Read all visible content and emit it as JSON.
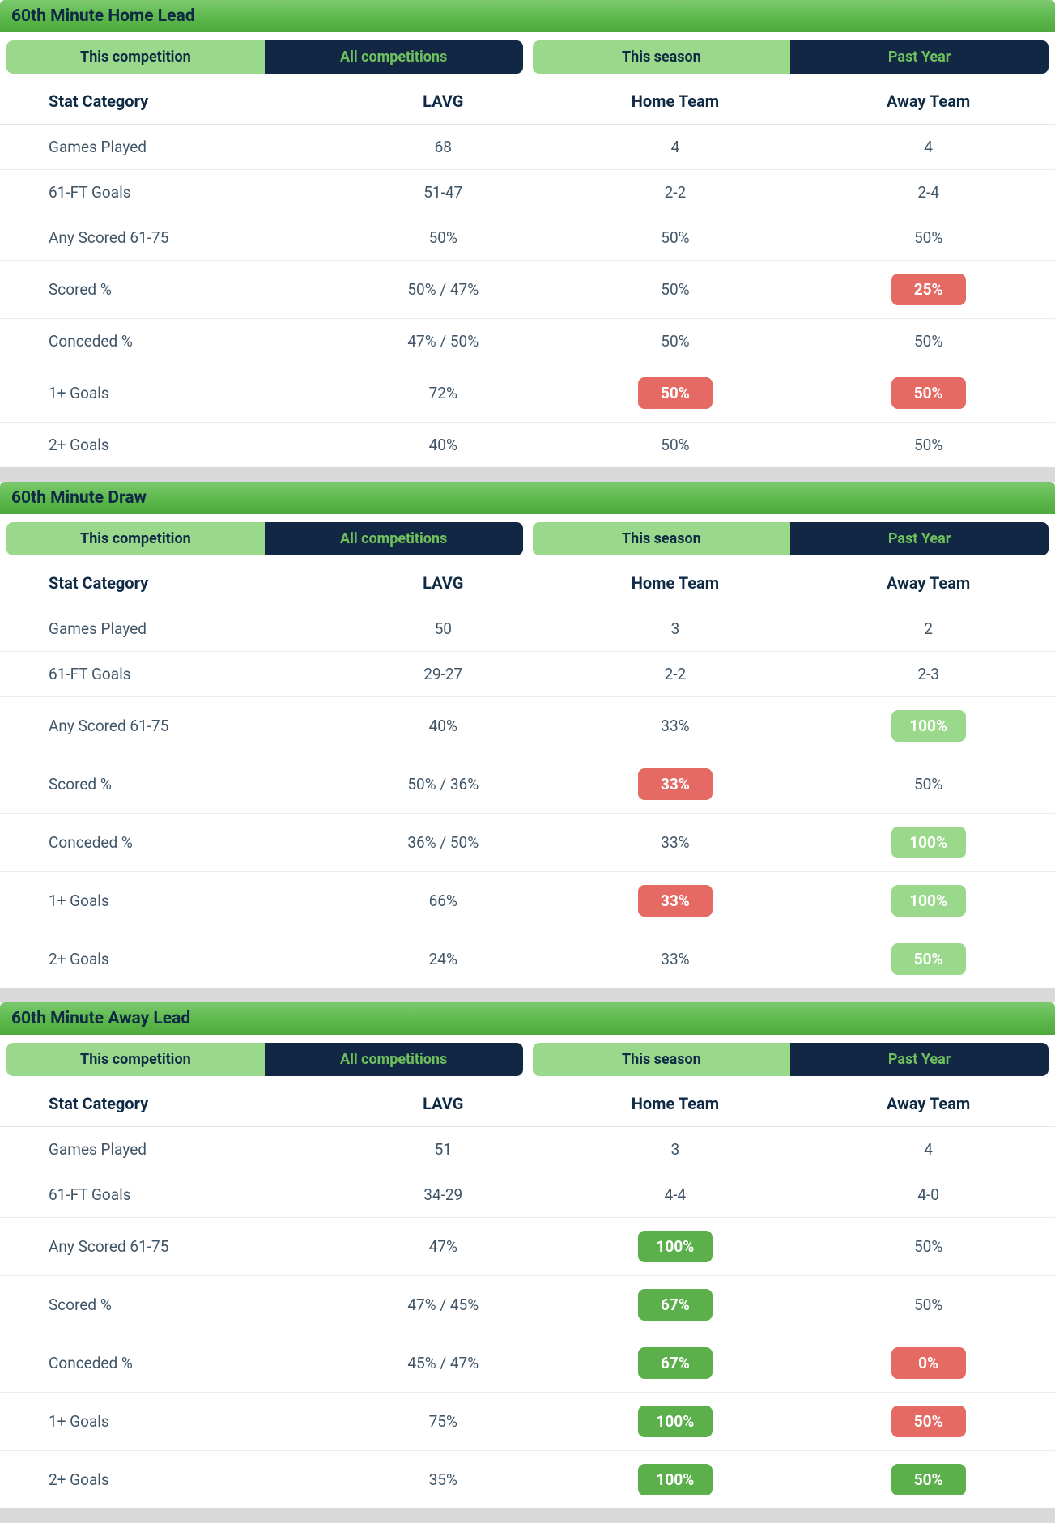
{
  "colors": {
    "header_gradient_top": "#7dc96f",
    "header_gradient_mid": "#5fba4e",
    "header_gradient_bot": "#4da93c",
    "header_text": "#0e2a44",
    "tab_active_bg": "#9ad98c",
    "tab_active_text": "#0e2a44",
    "tab_inactive_bg": "#122743",
    "tab_inactive_text": "#6fbf5e",
    "badge_red": "#e56a63",
    "badge_green_light": "#9ad98c",
    "badge_green_dark": "#5bb04c",
    "row_text": "#405568",
    "border": "#ececec",
    "page_bg": "#d9d9d9"
  },
  "tab_labels": {
    "this_competition": "This competition",
    "all_competitions": "All competitions",
    "this_season": "This season",
    "past_year": "Past Year"
  },
  "columns": {
    "cat": "Stat Category",
    "lavg": "LAVG",
    "home": "Home Team",
    "away": "Away Team"
  },
  "sections": [
    {
      "title": "60th Minute Home Lead",
      "rows": [
        {
          "cat": "Games Played",
          "lavg": "68",
          "home": {
            "text": "4"
          },
          "away": {
            "text": "4"
          }
        },
        {
          "cat": "61-FT Goals",
          "lavg": "51-47",
          "home": {
            "text": "2-2"
          },
          "away": {
            "text": "2-4"
          }
        },
        {
          "cat": "Any Scored 61-75",
          "lavg": "50%",
          "home": {
            "text": "50%"
          },
          "away": {
            "text": "50%"
          }
        },
        {
          "cat": "Scored %",
          "lavg": "50% / 47%",
          "home": {
            "text": "50%"
          },
          "away": {
            "text": "25%",
            "badge": "red"
          }
        },
        {
          "cat": "Conceded %",
          "lavg": "47% / 50%",
          "home": {
            "text": "50%"
          },
          "away": {
            "text": "50%"
          }
        },
        {
          "cat": "1+ Goals",
          "lavg": "72%",
          "home": {
            "text": "50%",
            "badge": "red"
          },
          "away": {
            "text": "50%",
            "badge": "red"
          }
        },
        {
          "cat": "2+ Goals",
          "lavg": "40%",
          "home": {
            "text": "50%"
          },
          "away": {
            "text": "50%"
          }
        }
      ]
    },
    {
      "title": "60th Minute Draw",
      "rows": [
        {
          "cat": "Games Played",
          "lavg": "50",
          "home": {
            "text": "3"
          },
          "away": {
            "text": "2"
          }
        },
        {
          "cat": "61-FT Goals",
          "lavg": "29-27",
          "home": {
            "text": "2-2"
          },
          "away": {
            "text": "2-3"
          }
        },
        {
          "cat": "Any Scored 61-75",
          "lavg": "40%",
          "home": {
            "text": "33%"
          },
          "away": {
            "text": "100%",
            "badge": "green-light"
          }
        },
        {
          "cat": "Scored %",
          "lavg": "50% / 36%",
          "home": {
            "text": "33%",
            "badge": "red"
          },
          "away": {
            "text": "50%"
          }
        },
        {
          "cat": "Conceded %",
          "lavg": "36% / 50%",
          "home": {
            "text": "33%"
          },
          "away": {
            "text": "100%",
            "badge": "green-light"
          }
        },
        {
          "cat": "1+ Goals",
          "lavg": "66%",
          "home": {
            "text": "33%",
            "badge": "red"
          },
          "away": {
            "text": "100%",
            "badge": "green-light"
          }
        },
        {
          "cat": "2+ Goals",
          "lavg": "24%",
          "home": {
            "text": "33%"
          },
          "away": {
            "text": "50%",
            "badge": "green-light"
          }
        }
      ]
    },
    {
      "title": "60th Minute Away Lead",
      "rows": [
        {
          "cat": "Games Played",
          "lavg": "51",
          "home": {
            "text": "3"
          },
          "away": {
            "text": "4"
          }
        },
        {
          "cat": "61-FT Goals",
          "lavg": "34-29",
          "home": {
            "text": "4-4"
          },
          "away": {
            "text": "4-0"
          }
        },
        {
          "cat": "Any Scored 61-75",
          "lavg": "47%",
          "home": {
            "text": "100%",
            "badge": "green-dark"
          },
          "away": {
            "text": "50%"
          }
        },
        {
          "cat": "Scored %",
          "lavg": "47% / 45%",
          "home": {
            "text": "67%",
            "badge": "green-dark"
          },
          "away": {
            "text": "50%"
          }
        },
        {
          "cat": "Conceded %",
          "lavg": "45% / 47%",
          "home": {
            "text": "67%",
            "badge": "green-dark"
          },
          "away": {
            "text": "0%",
            "badge": "red"
          }
        },
        {
          "cat": "1+ Goals",
          "lavg": "75%",
          "home": {
            "text": "100%",
            "badge": "green-dark"
          },
          "away": {
            "text": "50%",
            "badge": "red"
          }
        },
        {
          "cat": "2+ Goals",
          "lavg": "35%",
          "home": {
            "text": "100%",
            "badge": "green-dark"
          },
          "away": {
            "text": "50%",
            "badge": "green-dark"
          }
        }
      ]
    }
  ]
}
